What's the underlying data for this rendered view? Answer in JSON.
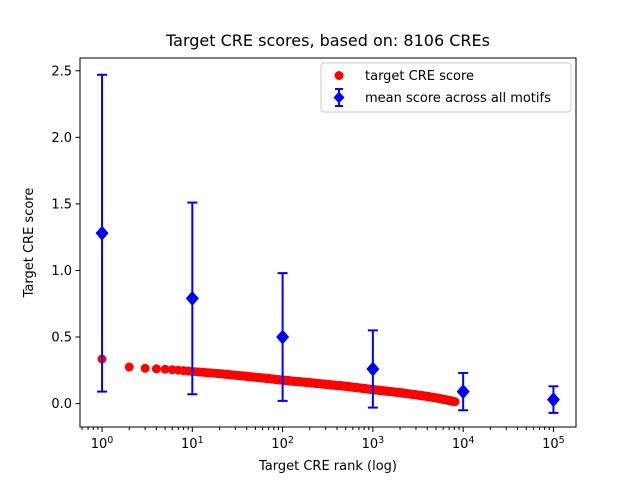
{
  "chart_data": {
    "type": "scatter",
    "title": "Target CRE scores, based on: 8106 CREs",
    "xlabel": "Target CRE rank (log)",
    "ylabel": "Target CRE score",
    "x_scale": "log",
    "y_scale": "linear",
    "xlim": [
      0.57,
      177828
    ],
    "ylim": [
      -0.176,
      2.596
    ],
    "x_tick_exponents": [
      0,
      1,
      2,
      3,
      4,
      5
    ],
    "x_tick_labels": [
      "10^0",
      "10^1",
      "10^2",
      "10^3",
      "10^4",
      "10^5"
    ],
    "y_ticks": [
      0.0,
      0.5,
      1.0,
      1.5,
      2.0,
      2.5
    ],
    "y_tick_labels": [
      "0.0",
      "0.5",
      "1.0",
      "1.5",
      "2.0",
      "2.5"
    ],
    "grid": false,
    "n_cres": 8106,
    "colors": {
      "target_score": "#ff0000",
      "mean_score": "#0000ff",
      "legend_border": "#cccccc"
    },
    "legend": {
      "position": "upper right",
      "items": [
        {
          "label": "target CRE score",
          "marker": "circle",
          "color": "#ff0000"
        },
        {
          "label": "mean score across all motifs",
          "marker": "diamond-errorbar",
          "color": "#0000ff"
        }
      ]
    },
    "series": [
      {
        "name": "target CRE score",
        "type": "scatter",
        "marker": "circle",
        "color": "#ff0000",
        "n_points": 8106,
        "note": "8106 sorted scores, dense monotone decreasing band; anchors are [rank, score] samples",
        "anchors": [
          [
            1,
            0.335
          ],
          [
            2,
            0.275
          ],
          [
            3,
            0.265
          ],
          [
            4,
            0.261
          ],
          [
            5,
            0.258
          ],
          [
            7,
            0.251
          ],
          [
            10,
            0.242
          ],
          [
            15,
            0.232
          ],
          [
            20,
            0.225
          ],
          [
            30,
            0.213
          ],
          [
            50,
            0.198
          ],
          [
            70,
            0.188
          ],
          [
            100,
            0.176
          ],
          [
            150,
            0.165
          ],
          [
            200,
            0.157
          ],
          [
            300,
            0.145
          ],
          [
            500,
            0.13
          ],
          [
            700,
            0.118
          ],
          [
            1000,
            0.105
          ],
          [
            1500,
            0.092
          ],
          [
            2000,
            0.082
          ],
          [
            3000,
            0.066
          ],
          [
            4000,
            0.054
          ],
          [
            5000,
            0.043
          ],
          [
            6500,
            0.028
          ],
          [
            8106,
            0.014
          ]
        ]
      },
      {
        "name": "mean score across all motifs",
        "type": "errorbar",
        "marker": "diamond",
        "color": "#0000ff",
        "points": [
          {
            "x": 1,
            "y": 1.28,
            "err": 1.19
          },
          {
            "x": 10,
            "y": 0.79,
            "err": 0.72
          },
          {
            "x": 100,
            "y": 0.5,
            "err": 0.48
          },
          {
            "x": 1000,
            "y": 0.26,
            "err": 0.29
          },
          {
            "x": 10000,
            "y": 0.09,
            "err": 0.14
          },
          {
            "x": 100000,
            "y": 0.03,
            "err": 0.1
          }
        ]
      }
    ]
  }
}
